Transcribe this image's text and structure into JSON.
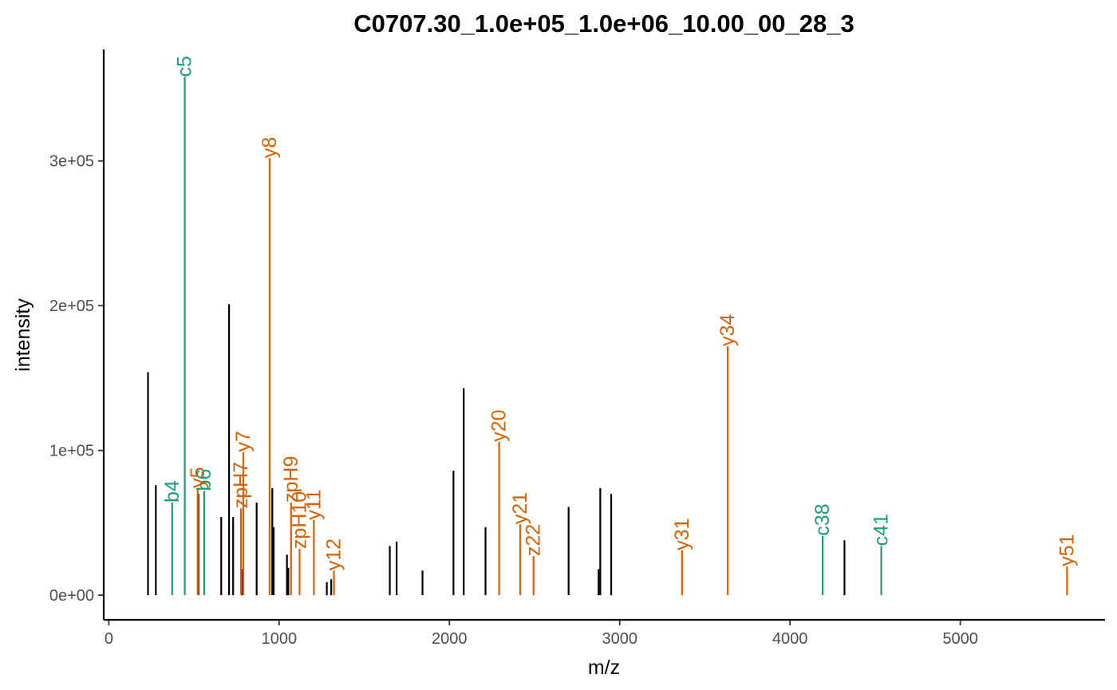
{
  "chart_data": {
    "type": "bar",
    "title": "C0707.30_1.0e+05_1.0e+06_10.00_00_28_3",
    "xlabel": "m/z",
    "ylabel": "intensity",
    "xlim": [
      -30,
      5850
    ],
    "ylim": [
      -17000,
      377000
    ],
    "x_ticks": [
      0,
      1000,
      2000,
      3000,
      4000,
      5000
    ],
    "x_tick_labels": [
      "0",
      "1000",
      "2000",
      "3000",
      "4000",
      "5000"
    ],
    "y_ticks": [
      0,
      100000,
      200000,
      300000
    ],
    "y_tick_labels": [
      "0e+00",
      "1e+05",
      "2e+05",
      "3e+05"
    ],
    "grid": false,
    "legend": "none",
    "colors": {
      "unannotated": "#000000",
      "n_terminal": "#1b9e77",
      "c_terminal": "#d95f02"
    },
    "series": [
      {
        "ion_class": "unannotated",
        "x": [
          230,
          276,
          526,
          660,
          706,
          730,
          782,
          868,
          960,
          968,
          1046,
          1054,
          1280,
          1306,
          1650,
          1690,
          1842,
          2024,
          2084,
          2212,
          2700,
          2876,
          2886,
          2950,
          4320
        ],
        "y": [
          154000,
          76000,
          70000,
          54000,
          201000,
          54000,
          18000,
          64000,
          74000,
          47000,
          28000,
          19000,
          9000,
          11000,
          34000,
          37000,
          17000,
          86000,
          143000,
          47000,
          61000,
          18000,
          74000,
          70000,
          38000
        ]
      },
      {
        "ion_class": "n_terminal",
        "x": [
          372,
          446,
          560,
          4192,
          4536
        ],
        "y": [
          64000,
          358000,
          72000,
          41000,
          34000
        ],
        "labels": [
          "b4",
          "c5",
          "b6",
          "c38",
          "c41"
        ]
      },
      {
        "ion_class": "c_terminal",
        "x": [
          522,
          776,
          790,
          944,
          1070,
          1120,
          1204,
          1322,
          2292,
          2416,
          2494,
          3366,
          3634,
          5627
        ],
        "y": [
          74000,
          60000,
          99000,
          302000,
          64000,
          32000,
          52000,
          17000,
          106000,
          49000,
          27000,
          31000,
          172000,
          20000
        ],
        "labels": [
          "y5",
          "zpH7",
          "y7",
          "y8",
          "zpH9",
          "zpH10",
          "y11",
          "y12",
          "y20",
          "y21",
          "z22",
          "y31",
          "y34",
          "y51"
        ]
      }
    ]
  }
}
